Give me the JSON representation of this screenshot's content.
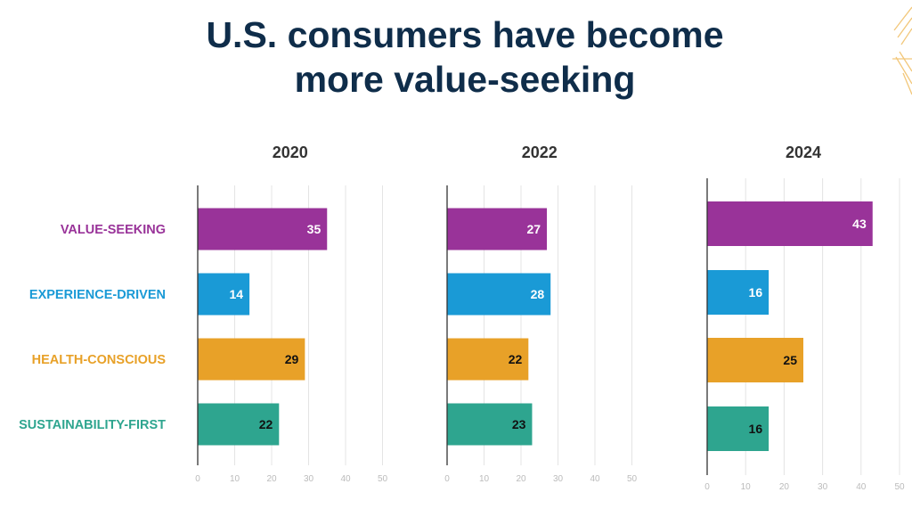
{
  "title": {
    "line1": "U.S. consumers have become",
    "line2": "more value-seeking"
  },
  "chart_data": {
    "type": "bar",
    "orientation": "horizontal",
    "title": "U.S. consumers have become more value-seeking",
    "categories": [
      "VALUE-SEEKING",
      "EXPERIENCE-DRIVEN",
      "HEALTH-CONSCIOUS",
      "SUSTAINABILITY-FIRST"
    ],
    "category_colors": [
      "#993399",
      "#1a9ad6",
      "#e8a128",
      "#2ea58f"
    ],
    "value_label_colors": [
      "#ffffff",
      "#ffffff",
      "#111111",
      "#111111"
    ],
    "xlim": [
      0,
      50
    ],
    "xticks": [
      0,
      10,
      20,
      30,
      40,
      50
    ],
    "grid": true,
    "panels": [
      {
        "name": "2020",
        "values": [
          35,
          14,
          29,
          22
        ]
      },
      {
        "name": "2022",
        "values": [
          27,
          28,
          22,
          23
        ]
      },
      {
        "name": "2024",
        "values": [
          43,
          16,
          25,
          16
        ]
      }
    ]
  }
}
